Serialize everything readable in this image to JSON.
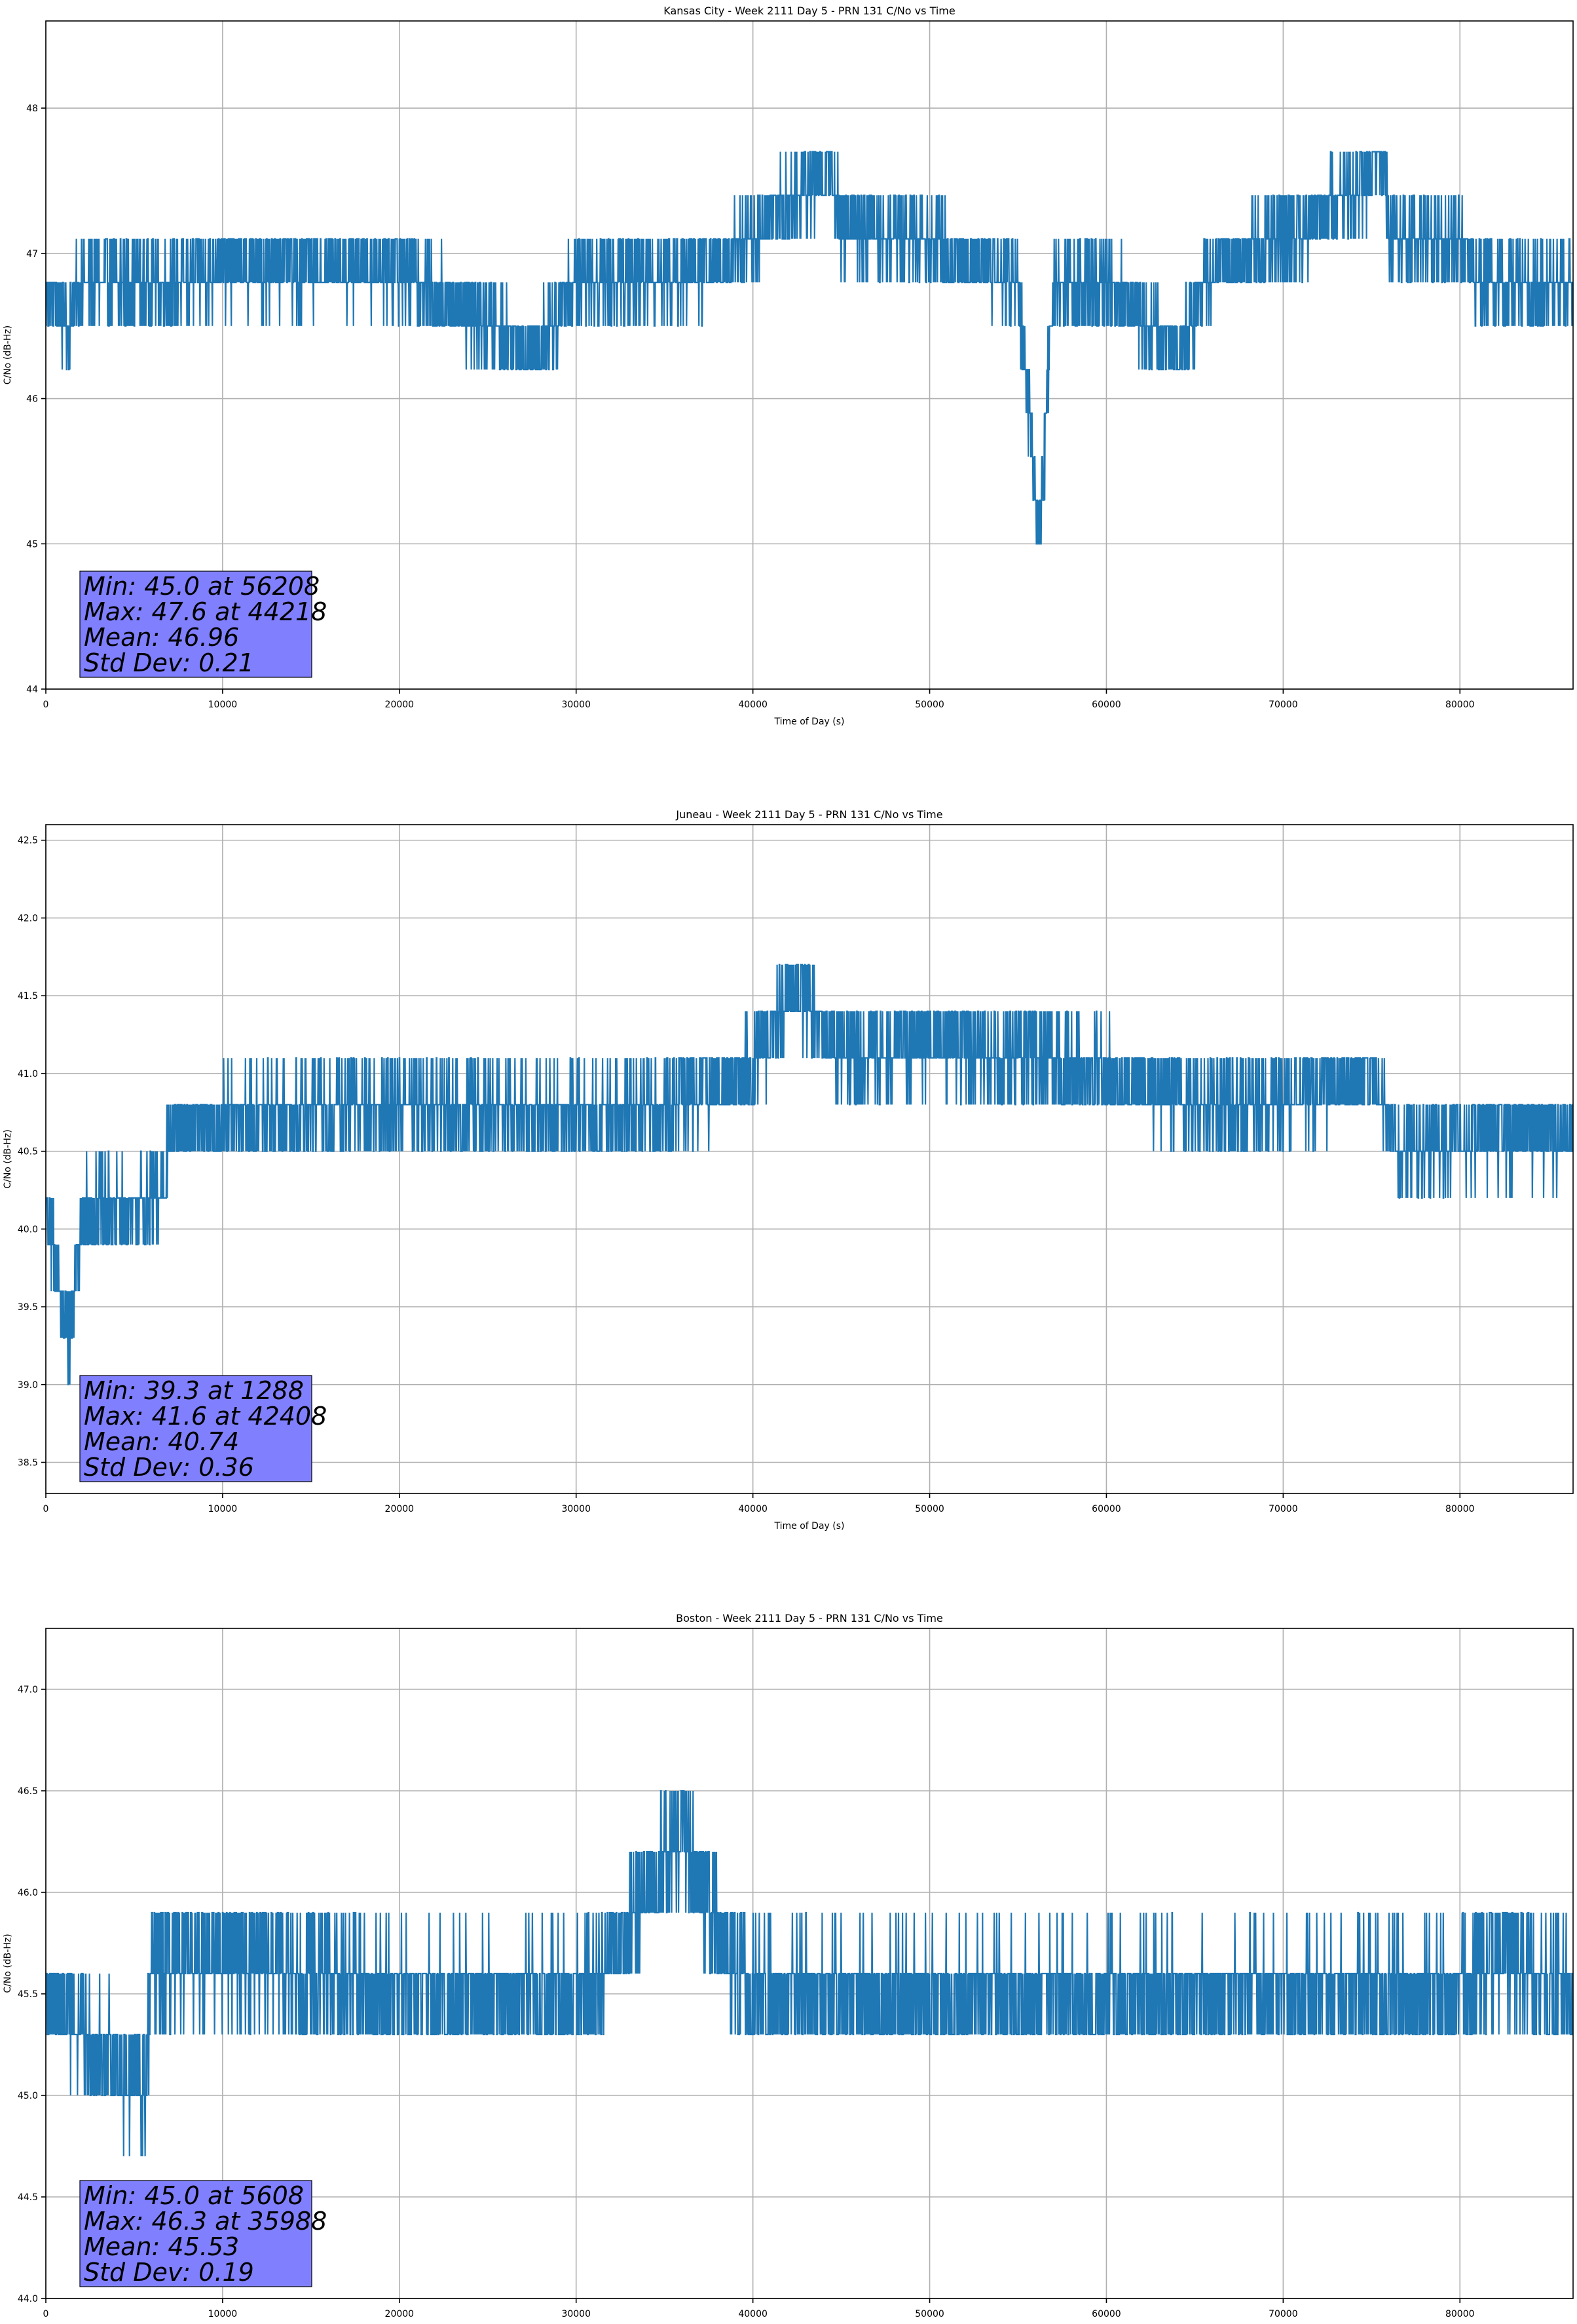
{
  "chart_data": [
    {
      "type": "line",
      "title": "Kansas City - Week 2111 Day 5 - PRN 131 C/No vs Time",
      "xlabel": "Time of Day (s)",
      "ylabel": "C/No (dB-Hz)",
      "xlim": [
        0,
        86400
      ],
      "ylim": [
        44.0,
        48.6
      ],
      "xticks": [
        0,
        10000,
        20000,
        30000,
        40000,
        50000,
        60000,
        70000,
        80000
      ],
      "xtick_labels": [
        "0",
        "10000",
        "20000",
        "30000",
        "40000",
        "50000",
        "60000",
        "70000",
        "80000"
      ],
      "yticks": [
        44,
        45,
        46,
        47,
        48
      ],
      "ytick_labels": [
        "44",
        "45",
        "46",
        "47",
        "48"
      ],
      "grid": true,
      "line_color": "#1f77b4",
      "stats_box_color": "#8080ff",
      "stats": [
        "Min: 45.0 at 56208",
        "Max: 47.6 at 44218",
        "Mean: 46.96",
        "Std Dev: 0.21"
      ],
      "series": [
        {
          "x": [
            0,
            1288,
            2000,
            7500,
            10000,
            20000,
            27600,
            30000,
            38000,
            44218,
            45000,
            50000,
            55000,
            56208,
            57000,
            60000,
            64000,
            66000,
            70000,
            75800,
            76000,
            80000,
            81000,
            86400
          ],
          "y": [
            46.8,
            46.5,
            46.8,
            46.8,
            46.9,
            46.9,
            46.3,
            46.8,
            46.9,
            47.6,
            47.2,
            47.1,
            46.8,
            45.0,
            46.8,
            46.8,
            46.3,
            46.9,
            47.1,
            47.6,
            47.1,
            47.1,
            46.8,
            46.8
          ]
        }
      ]
    },
    {
      "type": "line",
      "title": "Juneau - Week 2111 Day 5 - PRN 131 C/No vs Time",
      "xlabel": "Time of Day (s)",
      "ylabel": "C/No (dB-Hz)",
      "xlim": [
        0,
        86400
      ],
      "ylim": [
        38.3,
        42.6
      ],
      "xticks": [
        0,
        10000,
        20000,
        30000,
        40000,
        50000,
        60000,
        70000,
        80000
      ],
      "xtick_labels": [
        "0",
        "10000",
        "20000",
        "30000",
        "40000",
        "50000",
        "60000",
        "70000",
        "80000"
      ],
      "yticks": [
        38.5,
        39.0,
        39.5,
        40.0,
        40.5,
        41.0,
        41.5,
        42.0,
        42.5
      ],
      "ytick_labels": [
        "38.5",
        "39.0",
        "39.5",
        "40.0",
        "40.5",
        "41.0",
        "41.5",
        "42.0",
        "42.5"
      ],
      "grid": true,
      "line_color": "#1f77b4",
      "stats_box_color": "#8080ff",
      "stats": [
        "Min: 39.3 at 1288",
        "Max: 41.6 at 42408",
        "Mean: 40.74",
        "Std Dev: 0.36"
      ],
      "series": [
        {
          "x": [
            0,
            1288,
            2000,
            5000,
            6500,
            7000,
            10000,
            20000,
            30000,
            35000,
            40000,
            42408,
            45000,
            50000,
            55000,
            60000,
            65000,
            70000,
            75000,
            76500,
            80000,
            86400
          ],
          "y": [
            40.1,
            39.3,
            40.1,
            40.1,
            40.2,
            40.6,
            40.7,
            40.8,
            40.7,
            40.8,
            41.0,
            41.6,
            41.1,
            41.2,
            41.1,
            41.0,
            40.8,
            40.8,
            41.0,
            40.5,
            40.6,
            40.6
          ]
        }
      ]
    },
    {
      "type": "line",
      "title": "Boston - Week 2111 Day 5 - PRN 131 C/No vs Time",
      "xlabel": "Time of Day (s)",
      "ylabel": "C/No (dB-Hz)",
      "xlim": [
        0,
        86400
      ],
      "ylim": [
        44.0,
        47.3
      ],
      "xticks": [
        0,
        10000,
        20000,
        30000,
        40000,
        50000,
        60000,
        70000,
        80000
      ],
      "xtick_labels": [
        "0",
        "10000",
        "20000",
        "30000",
        "40000",
        "50000",
        "60000",
        "70000",
        "80000"
      ],
      "yticks": [
        44.0,
        44.5,
        45.0,
        45.5,
        46.0,
        46.5,
        47.0
      ],
      "ytick_labels": [
        "44.0",
        "44.5",
        "45.0",
        "45.5",
        "46.0",
        "46.5",
        "47.0"
      ],
      "grid": true,
      "line_color": "#1f77b4",
      "stats_box_color": "#8080ff",
      "stats": [
        "Min: 45.0 at 5608",
        "Max: 46.3 at 35988",
        "Mean: 45.53",
        "Std Dev: 0.19"
      ],
      "series": [
        {
          "x": [
            0,
            5608,
            6000,
            10000,
            15000,
            20000,
            30000,
            32000,
            35988,
            38000,
            40000,
            50000,
            60000,
            70000,
            80000,
            82000,
            86400
          ],
          "y": [
            45.5,
            45.0,
            45.6,
            45.7,
            45.6,
            45.5,
            45.5,
            45.7,
            46.3,
            45.8,
            45.5,
            45.5,
            45.5,
            45.5,
            45.5,
            45.7,
            45.5
          ]
        }
      ]
    }
  ]
}
